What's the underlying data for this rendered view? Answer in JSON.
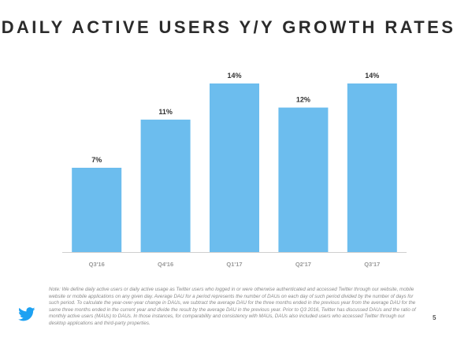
{
  "slide": {
    "title": "DAILY ACTIVE USERS Y/Y GROWTH RATES",
    "note": "Note: We define daily active users or daily active usage as Twitter users who logged in or were otherwise authenticated and accessed Twitter through our website, mobile website or mobile applications on any given day. Average DAU for a period represents the number of DAUs on each day of such period divided by the number of days for such period. To calculate the year-over-year change in DAUs, we subtract the average DAU for the three months ended in the previous year from the average DAU for the same three months ended in the current year and divide the result by the average DAU in the previous year. Prior to Q3 2016, Twitter has discussed DAUs and the ratio of monthly active users (MAUs) to DAUs. In those instances, for comparability and consistency with MAUs, DAUs also included users who accessed Twitter through our desktop applications and third-party properties.",
    "page_number": "5",
    "logo_icon": "twitter-bird-icon"
  },
  "chart_data": {
    "type": "bar",
    "title": "DAILY ACTIVE USERS Y/Y GROWTH RATES",
    "xlabel": "",
    "ylabel": "",
    "categories": [
      "Q3'16",
      "Q4'16",
      "Q1'17",
      "Q2'17",
      "Q3'17"
    ],
    "values": [
      7,
      11,
      14,
      12,
      14
    ],
    "value_labels": [
      "7%",
      "11%",
      "14%",
      "12%",
      "14%"
    ],
    "ylim": [
      0,
      15.7
    ],
    "grid": false,
    "bar_color": "#6cbdee",
    "axis_color": "#cfcfcf",
    "label_color": "#9a9a9a"
  }
}
